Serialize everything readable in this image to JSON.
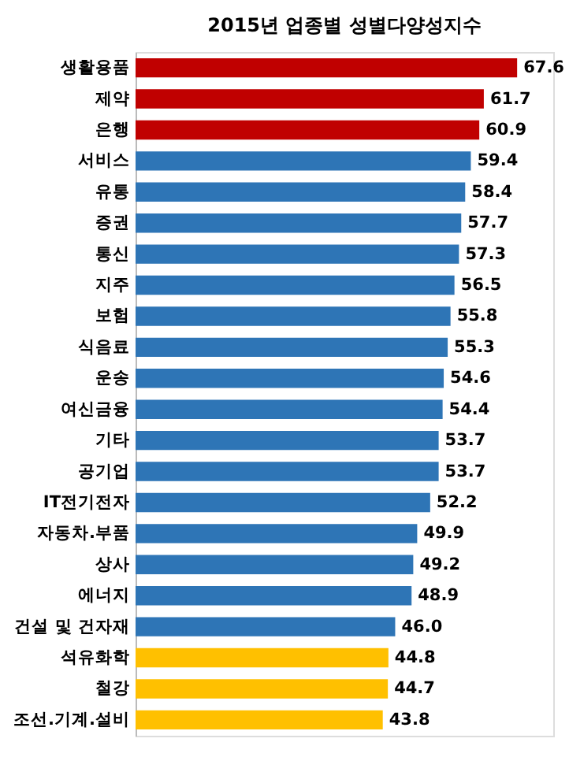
{
  "chart_data": {
    "type": "bar",
    "orientation": "horizontal",
    "title": "2015년 업종별 성별다양성지수",
    "categories": [
      "생활용품",
      "제약",
      "은행",
      "서비스",
      "유통",
      "증권",
      "통신",
      "지주",
      "보험",
      "식음료",
      "운송",
      "여신금융",
      "기타",
      "공기업",
      "IT전기전자",
      "자동차.부품",
      "상사",
      "에너지",
      "건설 및 건자재",
      "석유화학",
      "철강",
      "조선.기계.설비"
    ],
    "values": [
      67.6,
      61.7,
      60.9,
      59.4,
      58.4,
      57.7,
      57.3,
      56.5,
      55.8,
      55.3,
      54.6,
      54.4,
      53.7,
      53.7,
      52.2,
      49.9,
      49.2,
      48.9,
      46.0,
      44.8,
      44.7,
      43.8
    ],
    "value_labels": [
      "67.6",
      "61.7",
      "60.9",
      "59.4",
      "58.4",
      "57.7",
      "57.3",
      "56.5",
      "55.8",
      "55.3",
      "54.6",
      "54.4",
      "53.7",
      "53.7",
      "52.2",
      "49.9",
      "49.2",
      "48.9",
      "46.0",
      "44.8",
      "44.7",
      "43.8"
    ],
    "colors": [
      "#c00000",
      "#c00000",
      "#c00000",
      "#2e75b6",
      "#2e75b6",
      "#2e75b6",
      "#2e75b6",
      "#2e75b6",
      "#2e75b6",
      "#2e75b6",
      "#2e75b6",
      "#2e75b6",
      "#2e75b6",
      "#2e75b6",
      "#2e75b6",
      "#2e75b6",
      "#2e75b6",
      "#2e75b6",
      "#2e75b6",
      "#ffc000",
      "#ffc000",
      "#ffc000"
    ],
    "xlim": [
      0,
      74
    ],
    "tick_labels": "y",
    "grid": false
  }
}
